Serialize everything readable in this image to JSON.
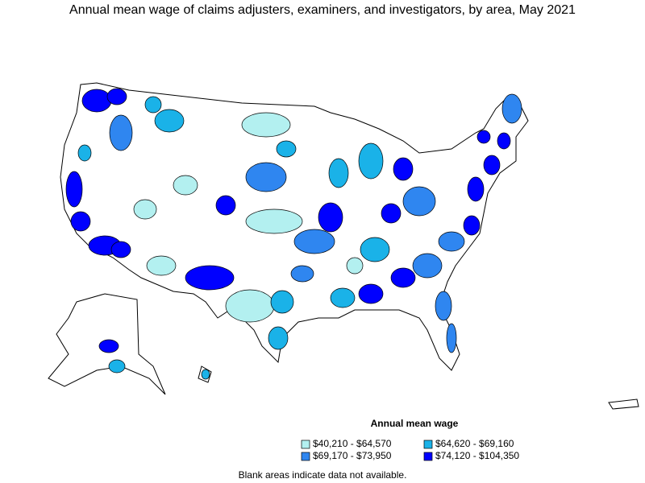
{
  "title": "Annual mean wage of claims adjusters, examiners, and investigators, by area, May 2021",
  "legend": {
    "title": "Annual mean wage",
    "items": [
      {
        "label": "$40,210 - $64,570",
        "color": "#b3f0f0"
      },
      {
        "label": "$64,620 - $69,160",
        "color": "#1ab2e8"
      },
      {
        "label": "$69,170 - $73,950",
        "color": "#2f86f0"
      },
      {
        "label": "$74,120 - $104,350",
        "color": "#0000ff"
      }
    ]
  },
  "note": "Blank areas indicate data not available."
}
